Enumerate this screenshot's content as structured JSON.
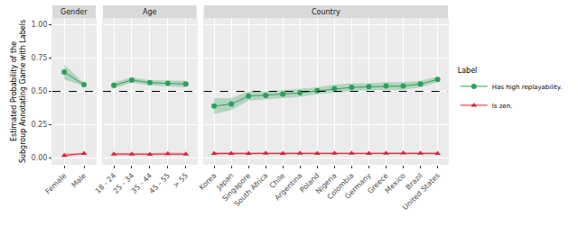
{
  "chart_data": {
    "type": "line",
    "ylabel": "Estimated Probability of the Subgroup Annotating Game with Labels",
    "ylim": [
      -0.05,
      1.05
    ],
    "yticks": [
      {
        "value": 0,
        "label": "0.00"
      },
      {
        "value": 0.25,
        "label": "0.25"
      },
      {
        "value": 0.5,
        "label": "0.50"
      },
      {
        "value": 0.75,
        "label": "0.75"
      },
      {
        "value": 1,
        "label": "1.00"
      }
    ],
    "reference_line": 0.5,
    "grid": true,
    "legend": "right",
    "legend_title": "Label",
    "series": [
      {
        "name": "Has high replayability.",
        "color": "#2e9e5b",
        "marker": "circle"
      },
      {
        "name": "Is zen.",
        "color": "#d7263d",
        "marker": "triangle-up"
      }
    ],
    "panels": [
      {
        "title": "Gender",
        "categories": [
          "Female",
          "Male"
        ],
        "series": [
          {
            "values": [
              0.645,
              0.55
            ],
            "lower": [
              0.59,
              0.54
            ],
            "upper": [
              0.7,
              0.56
            ]
          },
          {
            "values": [
              0.02,
              0.035
            ],
            "lower": [
              0.01,
              0.03
            ],
            "upper": [
              0.035,
              0.04
            ]
          }
        ]
      },
      {
        "title": "Age",
        "categories": [
          "18 - 24",
          "25 - 34",
          "35 - 44",
          "45 - 55",
          "> 55"
        ],
        "series": [
          {
            "values": [
              0.545,
              0.585,
              0.565,
              0.56,
              0.555
            ],
            "lower": [
              0.52,
              0.565,
              0.545,
              0.54,
              0.53
            ],
            "upper": [
              0.57,
              0.605,
              0.585,
              0.58,
              0.58
            ]
          },
          {
            "values": [
              0.03,
              0.03,
              0.028,
              0.032,
              0.03
            ],
            "lower": [
              0.02,
              0.022,
              0.02,
              0.022,
              0.02
            ],
            "upper": [
              0.04,
              0.038,
              0.036,
              0.042,
              0.04
            ]
          }
        ]
      },
      {
        "title": "Country",
        "categories": [
          "Korea",
          "Japan",
          "Singapore",
          "South Africa",
          "Chile",
          "Argentina",
          "Poland",
          "Nigeria",
          "Colombia",
          "Germany",
          "Greece",
          "Mexico",
          "Brazil",
          "United States"
        ],
        "series": [
          {
            "values": [
              0.39,
              0.405,
              0.465,
              0.47,
              0.48,
              0.49,
              0.505,
              0.52,
              0.53,
              0.535,
              0.54,
              0.54,
              0.555,
              0.59
            ],
            "lower": [
              0.33,
              0.36,
              0.43,
              0.44,
              0.45,
              0.46,
              0.48,
              0.49,
              0.5,
              0.51,
              0.51,
              0.51,
              0.53,
              0.57
            ],
            "upper": [
              0.45,
              0.45,
              0.5,
              0.5,
              0.51,
              0.52,
              0.53,
              0.55,
              0.56,
              0.56,
              0.57,
              0.57,
              0.58,
              0.61
            ]
          },
          {
            "values": [
              0.035,
              0.035,
              0.035,
              0.036,
              0.035,
              0.036,
              0.035,
              0.036,
              0.036,
              0.035,
              0.036,
              0.038,
              0.036,
              0.035
            ],
            "lower": [
              0.025,
              0.027,
              0.027,
              0.028,
              0.027,
              0.028,
              0.027,
              0.028,
              0.028,
              0.027,
              0.028,
              0.03,
              0.028,
              0.028
            ],
            "upper": [
              0.045,
              0.043,
              0.043,
              0.044,
              0.043,
              0.044,
              0.043,
              0.044,
              0.044,
              0.043,
              0.044,
              0.046,
              0.044,
              0.042
            ]
          }
        ]
      }
    ]
  }
}
